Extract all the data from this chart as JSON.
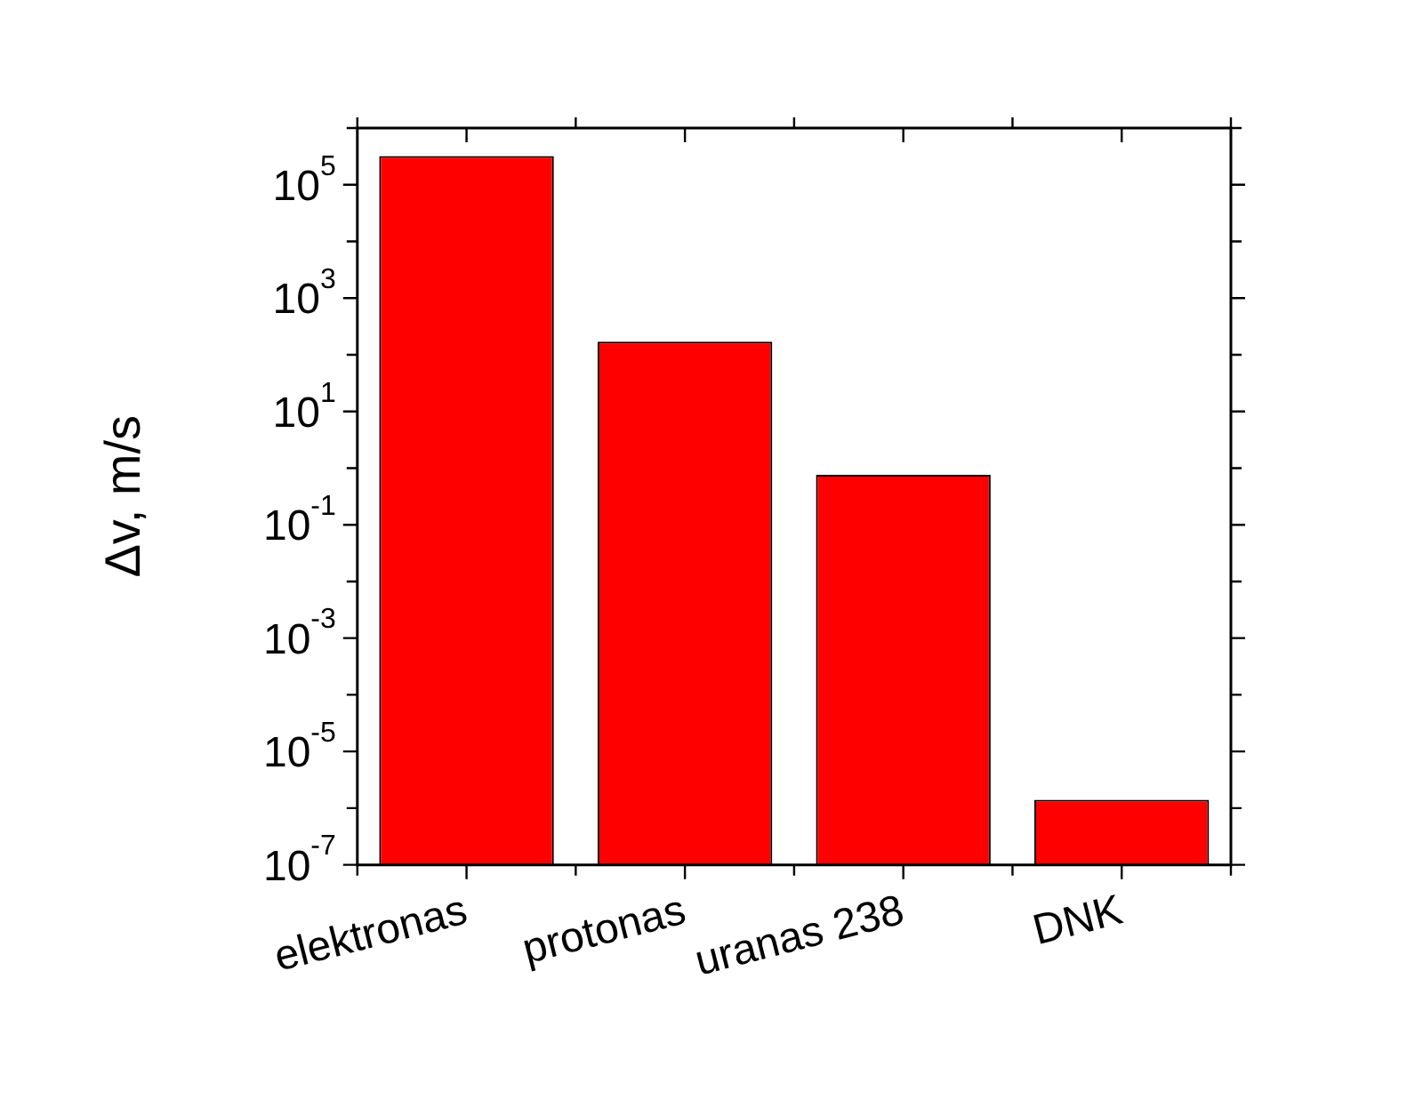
{
  "chart_data": {
    "type": "bar",
    "ylabel": "Δv, m/s",
    "categories": [
      "elektronas",
      "protonas",
      "uranas 238",
      "DNK"
    ],
    "values": [
      320000,
      170,
      0.76,
      1.4e-06
    ],
    "color": "#ff0000",
    "log": true,
    "ylim": [
      1e-07,
      1000000.0
    ],
    "yticks": [
      {
        "value": 1e-07,
        "label": "10$^{-7}$"
      },
      {
        "value": 1e-06,
        "label": null
      },
      {
        "value": 1e-05,
        "label": "10$^{-5}$"
      },
      {
        "value": 0.0001,
        "label": null
      },
      {
        "value": 0.001,
        "label": "10$^{-3}$"
      },
      {
        "value": 0.01,
        "label": null
      },
      {
        "value": 0.1,
        "label": "10$^{-1}$"
      },
      {
        "value": 1,
        "label": null
      },
      {
        "value": 10,
        "label": "10$^{1}$"
      },
      {
        "value": 100,
        "label": null
      },
      {
        "value": 1000,
        "label": "10$^{3}$"
      },
      {
        "value": 10000,
        "label": null
      },
      {
        "value": 100000,
        "label": "10$^{5}$"
      },
      {
        "value": 1000000,
        "label": null
      }
    ],
    "grid": false,
    "legend": false
  }
}
